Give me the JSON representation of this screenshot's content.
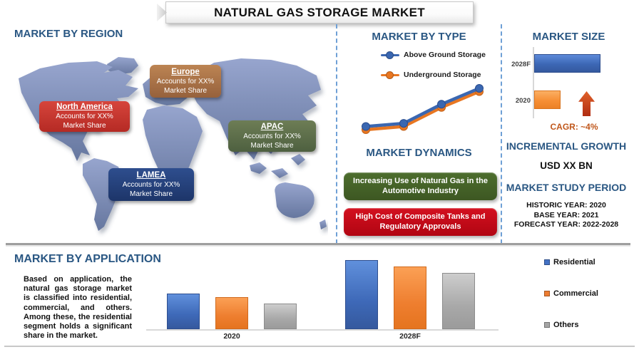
{
  "title": "NATURAL GAS STORAGE MARKET",
  "colors": {
    "heading_blue": "#2A5783",
    "separator_blue": "#6FA0D6",
    "north_america_red": "#C0392E",
    "europe_brown": "#A9713F",
    "apac_green": "#596B4A",
    "lamea_navy": "#243F7C",
    "driver_green": "#44622A",
    "restraint_red": "#C00E1E",
    "cagr_orange": "#C0571B"
  },
  "region_section": {
    "heading": "MARKET BY REGION",
    "regions": [
      {
        "name": "North America",
        "line1": "Accounts for XX%",
        "line2": "Market Share",
        "color": "#C0392E"
      },
      {
        "name": "Europe",
        "line1": "Accounts for XX%",
        "line2": "Market Share",
        "color": "#A9713F"
      },
      {
        "name": "APAC",
        "line1": "Accounts for XX%",
        "line2": "Market Share",
        "color": "#596B4A"
      },
      {
        "name": "LAMEA",
        "line1": "Accounts for XX%",
        "line2": "Market Share",
        "color": "#243F7C"
      }
    ]
  },
  "type_section": {
    "heading": "MARKET BY TYPE"
  },
  "dynamics_section": {
    "heading": "MARKET DYNAMICS",
    "driver": "Increasing Use of Natural Gas in the Automotive Industry",
    "restraint": "High Cost of Composite Tanks and Regulatory Approvals"
  },
  "size_section": {
    "heading": "MARKET SIZE",
    "cagr_label": "CAGR:  ~4%"
  },
  "growth_section": {
    "heading": "INCREMENTAL GROWTH",
    "value": "USD XX BN"
  },
  "study_section": {
    "heading": "MARKET STUDY PERIOD",
    "historic": "HISTORIC YEAR: 2020",
    "base": "BASE YEAR: 2021",
    "forecast": "FORECAST YEAR: 2022-2028"
  },
  "application_section": {
    "heading": "MARKET BY APPLICATION",
    "paragraph": "Based on application, the natural gas storage market is classified into residential, commercial, and others. Among these, the residential segment holds a significant share in the market."
  },
  "chart_data": [
    {
      "type": "line",
      "title": "MARKET BY TYPE",
      "x": [
        1,
        2,
        3,
        4
      ],
      "axes_visible": false,
      "note": "no axis tick labels shown; values are relative estimates",
      "series": [
        {
          "name": "Above Ground Storage",
          "color": "#3A67B1",
          "marker_edge": "#2A4D8F",
          "values": [
            10,
            11,
            17,
            22
          ]
        },
        {
          "name": "Underground Storage",
          "color": "#E87722",
          "marker_edge": "#C2621A",
          "values": [
            9,
            10,
            16,
            21
          ]
        }
      ],
      "legend_position": "top"
    },
    {
      "type": "bar",
      "orientation": "horizontal",
      "title": "MARKET SIZE",
      "categories": [
        "2028F",
        "2020"
      ],
      "values": [
        100,
        40
      ],
      "colors": [
        "#4472C4",
        "#F79646"
      ],
      "annotation": "CAGR:  ~4%",
      "note": "lengths relative; actual figures shown as XX in source"
    },
    {
      "type": "bar",
      "title": "MARKET BY APPLICATION",
      "categories": [
        "2020",
        "2028F"
      ],
      "series": [
        {
          "name": "Residential",
          "color": "#4472C4",
          "values": [
            50,
            97
          ]
        },
        {
          "name": "Commercial",
          "color": "#ED7D31",
          "values": [
            45,
            88
          ]
        },
        {
          "name": "Others",
          "color": "#A5A5A5",
          "values": [
            36,
            79
          ]
        }
      ],
      "legend_position": "right",
      "note": "no y-axis shown; heights are relative estimates"
    }
  ]
}
